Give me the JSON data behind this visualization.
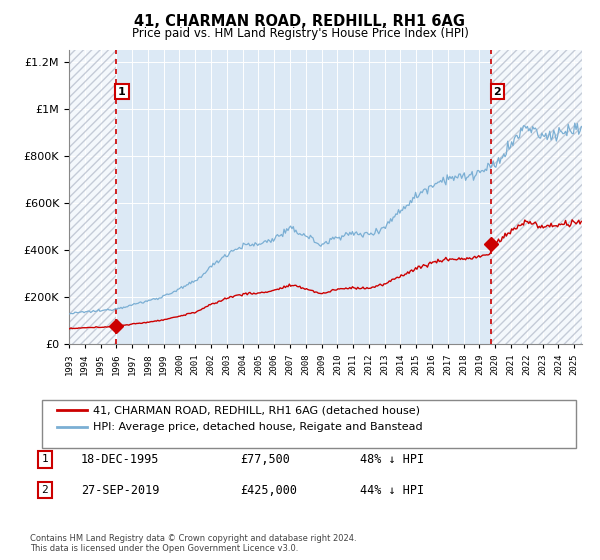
{
  "title": "41, CHARMAN ROAD, REDHILL, RH1 6AG",
  "subtitle": "Price paid vs. HM Land Registry's House Price Index (HPI)",
  "legend_line1": "41, CHARMAN ROAD, REDHILL, RH1 6AG (detached house)",
  "legend_line2": "HPI: Average price, detached house, Reigate and Banstead",
  "footnote": "Contains HM Land Registry data © Crown copyright and database right 2024.\nThis data is licensed under the Open Government Licence v3.0.",
  "sale1_date": 1995.96,
  "sale1_price": 77500,
  "sale1_label": "1",
  "sale1_text": "18-DEC-1995",
  "sale1_amount": "£77,500",
  "sale1_pct": "48% ↓ HPI",
  "sale2_date": 2019.74,
  "sale2_price": 425000,
  "sale2_label": "2",
  "sale2_text": "27-SEP-2019",
  "sale2_amount": "£425,000",
  "sale2_pct": "44% ↓ HPI",
  "hpi_color": "#7bafd4",
  "property_color": "#cc0000",
  "background_color": "#ffffff",
  "plot_bg_color": "#dce9f5",
  "ylim_min": 0,
  "ylim_max": 1250000,
  "xmin": 1993.0,
  "xmax": 2025.5,
  "hpi_annual": {
    "1993": 130000,
    "1994": 138000,
    "1995": 143000,
    "1996": 152000,
    "1997": 168000,
    "1998": 185000,
    "1999": 205000,
    "2000": 235000,
    "2001": 268000,
    "2002": 330000,
    "2003": 385000,
    "2004": 420000,
    "2005": 425000,
    "2006": 450000,
    "2007": 490000,
    "2008": 465000,
    "2009": 420000,
    "2010": 460000,
    "2011": 470000,
    "2012": 468000,
    "2013": 500000,
    "2014": 570000,
    "2015": 630000,
    "2016": 680000,
    "2017": 710000,
    "2018": 710000,
    "2019": 730000,
    "2020": 760000,
    "2021": 850000,
    "2022": 930000,
    "2023": 880000,
    "2024": 900000,
    "2025": 910000
  }
}
